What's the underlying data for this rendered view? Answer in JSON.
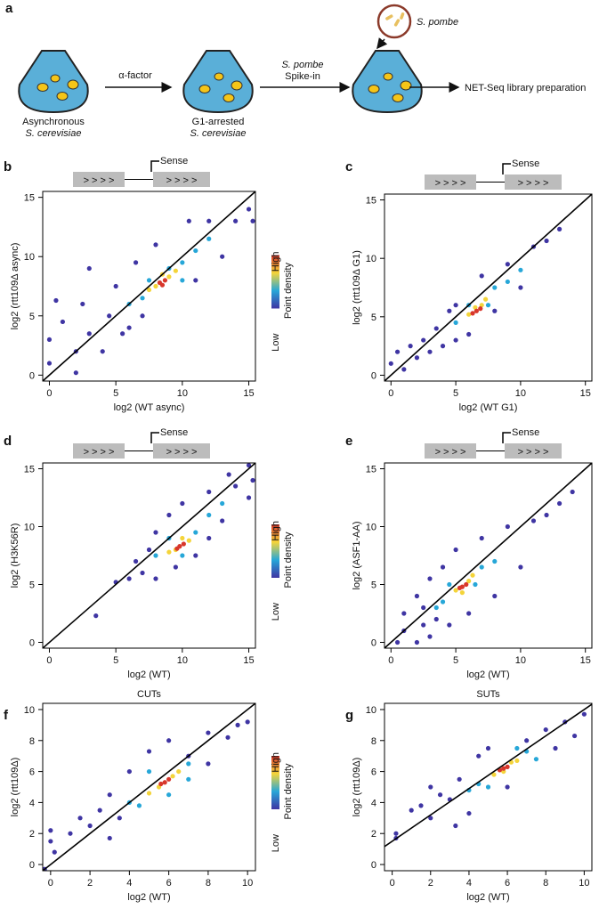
{
  "diagram": {
    "panel": "a",
    "treatment": "α-factor",
    "spike_species": "S. pombe",
    "spike_step": "Spike-in",
    "spike_source": "S. pombe",
    "output": "NET-Seq library preparation",
    "flask1": [
      "Asynchronous",
      "S. cerevisiae"
    ],
    "flask2": [
      "G1-arrested",
      "S. cerevisiae"
    ]
  },
  "chart_data": [
    {
      "type": "scatter",
      "panel": "b",
      "xlabel": "log2 (WT async)",
      "ylabel": "log2 (rtt109Δ async)",
      "xlim": [
        -0.5,
        15.5
      ],
      "ylim": [
        -0.5,
        15.5
      ],
      "xticks": [
        0,
        5,
        10,
        15
      ],
      "yticks": [
        0,
        5,
        10,
        15
      ],
      "schematic": {
        "arrows": [
          "> > > >",
          "> > > >"
        ],
        "label": "Sense",
        "label_color": "#d8372b"
      },
      "legend": {
        "high": "High",
        "low": "Low",
        "title": "Point density",
        "colors": [
          "#3f35a3",
          "#27a7d8",
          "#f4d43a",
          "#d8372b"
        ]
      },
      "ref_line": {
        "slope": 1,
        "intercept": 0
      },
      "series": [
        {
          "color": "#3f35a3",
          "x": [
            0,
            0,
            1,
            2,
            2.5,
            3,
            3,
            4,
            4.5,
            5,
            5.5,
            6,
            6.5,
            7,
            8,
            11,
            12,
            13,
            14,
            15,
            15.3,
            10.5,
            2,
            0.5
          ],
          "values": [
            1,
            3,
            4.5,
            2,
            6,
            3.5,
            9,
            2,
            5,
            7.5,
            3.5,
            4,
            9.5,
            5,
            11,
            8,
            13,
            10,
            13,
            14,
            13,
            13,
            0.2,
            6.3
          ]
        },
        {
          "color": "#27a7d8",
          "x": [
            6,
            7,
            9,
            10,
            11,
            12,
            7.5,
            10
          ],
          "values": [
            6,
            6.5,
            9,
            9.5,
            10.5,
            11.5,
            8,
            8
          ]
        },
        {
          "color": "#f4d43a",
          "x": [
            7.5,
            8,
            9,
            9.5,
            8.5
          ],
          "values": [
            7.2,
            7.5,
            8.3,
            8.8,
            8.5
          ]
        },
        {
          "color": "#d8372b",
          "x": [
            8.3,
            8.7,
            8.5
          ],
          "values": [
            7.8,
            8,
            7.6
          ]
        }
      ]
    },
    {
      "type": "scatter",
      "panel": "c",
      "xlabel": "log2 (WT G1)",
      "ylabel": "log2 (rtt109Δ G1)",
      "xlim": [
        -0.5,
        15.5
      ],
      "ylim": [
        -0.5,
        15.5
      ],
      "xticks": [
        0,
        5,
        10,
        15
      ],
      "yticks": [
        0,
        5,
        10,
        15
      ],
      "schematic": {
        "arrows": [
          "> > > >",
          "> > > >"
        ],
        "label": "Sense",
        "label_color": "#d8372b"
      },
      "ref_line": {
        "slope": 1,
        "intercept": 0
      },
      "series": [
        {
          "color": "#3f35a3",
          "x": [
            0,
            0.5,
            1,
            1.5,
            2,
            2.5,
            3,
            3.5,
            4,
            5,
            5,
            6,
            7,
            8,
            9,
            10,
            11,
            12,
            13,
            4.5
          ],
          "values": [
            1,
            2,
            0.5,
            2.5,
            1.5,
            3,
            2,
            4,
            2.5,
            3,
            6,
            3.5,
            8.5,
            5.5,
            9.5,
            7.5,
            11,
            11.5,
            12.5,
            5.5
          ]
        },
        {
          "color": "#27a7d8",
          "x": [
            5,
            6,
            8,
            9,
            7.5,
            10
          ],
          "values": [
            4.5,
            6,
            7.5,
            8,
            6,
            9
          ]
        },
        {
          "color": "#f4d43a",
          "x": [
            6,
            7,
            6.5,
            7.3
          ],
          "values": [
            5.2,
            6,
            5.8,
            6.5
          ]
        },
        {
          "color": "#d8372b",
          "x": [
            6.6,
            6.9,
            6.3
          ],
          "values": [
            5.5,
            5.7,
            5.3
          ]
        }
      ]
    },
    {
      "type": "scatter",
      "panel": "d",
      "xlabel": "log2 (WT)",
      "ylabel": "log2 (H3K56R)",
      "xlim": [
        -0.5,
        15.5
      ],
      "ylim": [
        -0.5,
        15.5
      ],
      "xticks": [
        0,
        5,
        10,
        15
      ],
      "yticks": [
        0,
        5,
        10,
        15
      ],
      "schematic": {
        "arrows": [
          "> > > >",
          "> > > >"
        ],
        "label": "Sense",
        "label_color": "#d8372b"
      },
      "legend": {
        "high": "High",
        "low": "Low",
        "title": "Point density",
        "colors": [
          "#3f35a3",
          "#27a7d8",
          "#f4d43a",
          "#d8372b"
        ]
      },
      "ref_line": {
        "slope": 1,
        "intercept": 0
      },
      "series": [
        {
          "color": "#3f35a3",
          "x": [
            3.5,
            5,
            6,
            6.5,
            7,
            8,
            8,
            9,
            9.5,
            10,
            11,
            12,
            12,
            13,
            14,
            15,
            15.3,
            13.5,
            15,
            7.5
          ],
          "values": [
            2.3,
            5.2,
            5.5,
            7,
            6,
            9.5,
            5.5,
            11,
            6.5,
            12,
            7.5,
            13,
            9,
            10.5,
            13.5,
            12.5,
            14,
            14.5,
            15.3,
            8
          ]
        },
        {
          "color": "#27a7d8",
          "x": [
            8,
            9,
            11,
            12,
            10,
            13
          ],
          "values": [
            7.5,
            9,
            9.5,
            11,
            7.5,
            12
          ]
        },
        {
          "color": "#f4d43a",
          "x": [
            9,
            10.5,
            10,
            9.5
          ],
          "values": [
            7.8,
            8.8,
            9,
            8
          ]
        },
        {
          "color": "#d8372b",
          "x": [
            9.8,
            10.1,
            9.6
          ],
          "values": [
            8.3,
            8.5,
            8.1
          ]
        }
      ]
    },
    {
      "type": "scatter",
      "panel": "e",
      "xlabel": "log2 (WT)",
      "ylabel": "log2 (ASF1-AA)",
      "xlim": [
        -0.5,
        15.5
      ],
      "ylim": [
        -0.5,
        15.5
      ],
      "xticks": [
        0,
        5,
        10,
        15
      ],
      "yticks": [
        0,
        5,
        10,
        15
      ],
      "schematic": {
        "arrows": [
          "> > > >",
          "> > > >"
        ],
        "label": "Sense",
        "label_color": "#d8372b"
      },
      "ref_line": {
        "slope": 1,
        "intercept": 0
      },
      "series": [
        {
          "color": "#3f35a3",
          "x": [
            0.5,
            1,
            1,
            2,
            2,
            2.5,
            3,
            3,
            3.5,
            4,
            4.5,
            5,
            6,
            7,
            8,
            9,
            10,
            11,
            12,
            13,
            14,
            2.5
          ],
          "values": [
            0,
            1,
            2.5,
            0,
            4,
            1.5,
            0.5,
            5.5,
            2,
            6.5,
            1.5,
            8,
            2.5,
            9,
            4,
            10,
            6.5,
            10.5,
            11,
            12,
            13,
            3
          ]
        },
        {
          "color": "#27a7d8",
          "x": [
            4,
            4.5,
            6.5,
            7,
            8,
            3.5
          ],
          "values": [
            3.5,
            5,
            5,
            6.5,
            7,
            3
          ]
        },
        {
          "color": "#f4d43a",
          "x": [
            5,
            6,
            5.5,
            6.3
          ],
          "values": [
            4.5,
            5.3,
            4.3,
            5.8
          ]
        },
        {
          "color": "#d8372b",
          "x": [
            5.5,
            5.8,
            5.3
          ],
          "values": [
            4.8,
            5,
            4.7
          ]
        }
      ]
    },
    {
      "type": "scatter",
      "panel": "f",
      "title": "CUTs",
      "xlabel": "log2 (WT)",
      "ylabel": "log2 (rtt109Δ)",
      "xlim": [
        -0.4,
        10.4
      ],
      "ylim": [
        -0.4,
        10.4
      ],
      "xticks": [
        0,
        2,
        4,
        6,
        8,
        10
      ],
      "yticks": [
        0,
        2,
        4,
        6,
        8,
        10
      ],
      "legend": {
        "high": "High",
        "low": "Low",
        "title": "Point density",
        "colors": [
          "#3f35a3",
          "#27a7d8",
          "#f4d43a",
          "#d8372b"
        ]
      },
      "ref_line": {
        "slope": 1,
        "intercept": 0
      },
      "series": [
        {
          "color": "#3f35a3",
          "x": [
            0,
            0,
            0.2,
            1,
            1.5,
            2,
            2.5,
            3,
            3,
            3.5,
            4,
            5,
            6,
            7,
            8,
            9,
            9.5,
            10,
            -0.3,
            8
          ],
          "values": [
            2.2,
            1.5,
            0.8,
            2,
            3,
            2.5,
            3.5,
            1.7,
            4.5,
            3,
            6,
            7.3,
            8,
            7,
            8.5,
            8.2,
            9,
            9.2,
            -0.3,
            6.5
          ]
        },
        {
          "color": "#27a7d8",
          "x": [
            4,
            4.5,
            6,
            7,
            7,
            5
          ],
          "values": [
            4,
            3.8,
            4.5,
            5.5,
            6.5,
            6
          ]
        },
        {
          "color": "#f4d43a",
          "x": [
            5,
            6.5,
            5.5,
            6.2
          ],
          "values": [
            4.6,
            6,
            5,
            5.7
          ]
        },
        {
          "color": "#d8372b",
          "x": [
            5.8,
            6,
            5.6
          ],
          "values": [
            5.3,
            5.5,
            5.2
          ]
        }
      ]
    },
    {
      "type": "scatter",
      "panel": "g",
      "title": "SUTs",
      "xlabel": "log2 (WT)",
      "ylabel": "log2 (rtt109Δ)",
      "xlim": [
        -0.4,
        10.4
      ],
      "ylim": [
        -0.4,
        10.4
      ],
      "xticks": [
        0,
        2,
        4,
        6,
        8,
        10
      ],
      "yticks": [
        0,
        2,
        4,
        6,
        8,
        10
      ],
      "ref_line": {
        "slope": 0.85,
        "intercept": 1.5
      },
      "series": [
        {
          "color": "#3f35a3",
          "x": [
            0.2,
            0.2,
            1,
            1.5,
            2,
            2.5,
            3,
            3.3,
            3.5,
            4,
            4.5,
            5,
            7,
            8,
            8.5,
            9,
            9.5,
            10,
            6,
            2
          ],
          "values": [
            2,
            1.7,
            3.5,
            3.8,
            3,
            4.5,
            4.2,
            2.5,
            5.5,
            3.3,
            7,
            7.5,
            8,
            8.7,
            7.5,
            9.2,
            8.3,
            9.7,
            5,
            5
          ]
        },
        {
          "color": "#27a7d8",
          "x": [
            4,
            4.5,
            5,
            7,
            7.5,
            6.5
          ],
          "values": [
            4.8,
            5.2,
            5,
            7.3,
            6.8,
            7.5
          ]
        },
        {
          "color": "#f4d43a",
          "x": [
            5.3,
            6.5,
            5.8,
            6.2
          ],
          "values": [
            5.8,
            6.7,
            6,
            6.6
          ]
        },
        {
          "color": "#d8372b",
          "x": [
            5.8,
            6,
            5.6
          ],
          "values": [
            6.2,
            6.3,
            6.1
          ]
        }
      ]
    }
  ]
}
